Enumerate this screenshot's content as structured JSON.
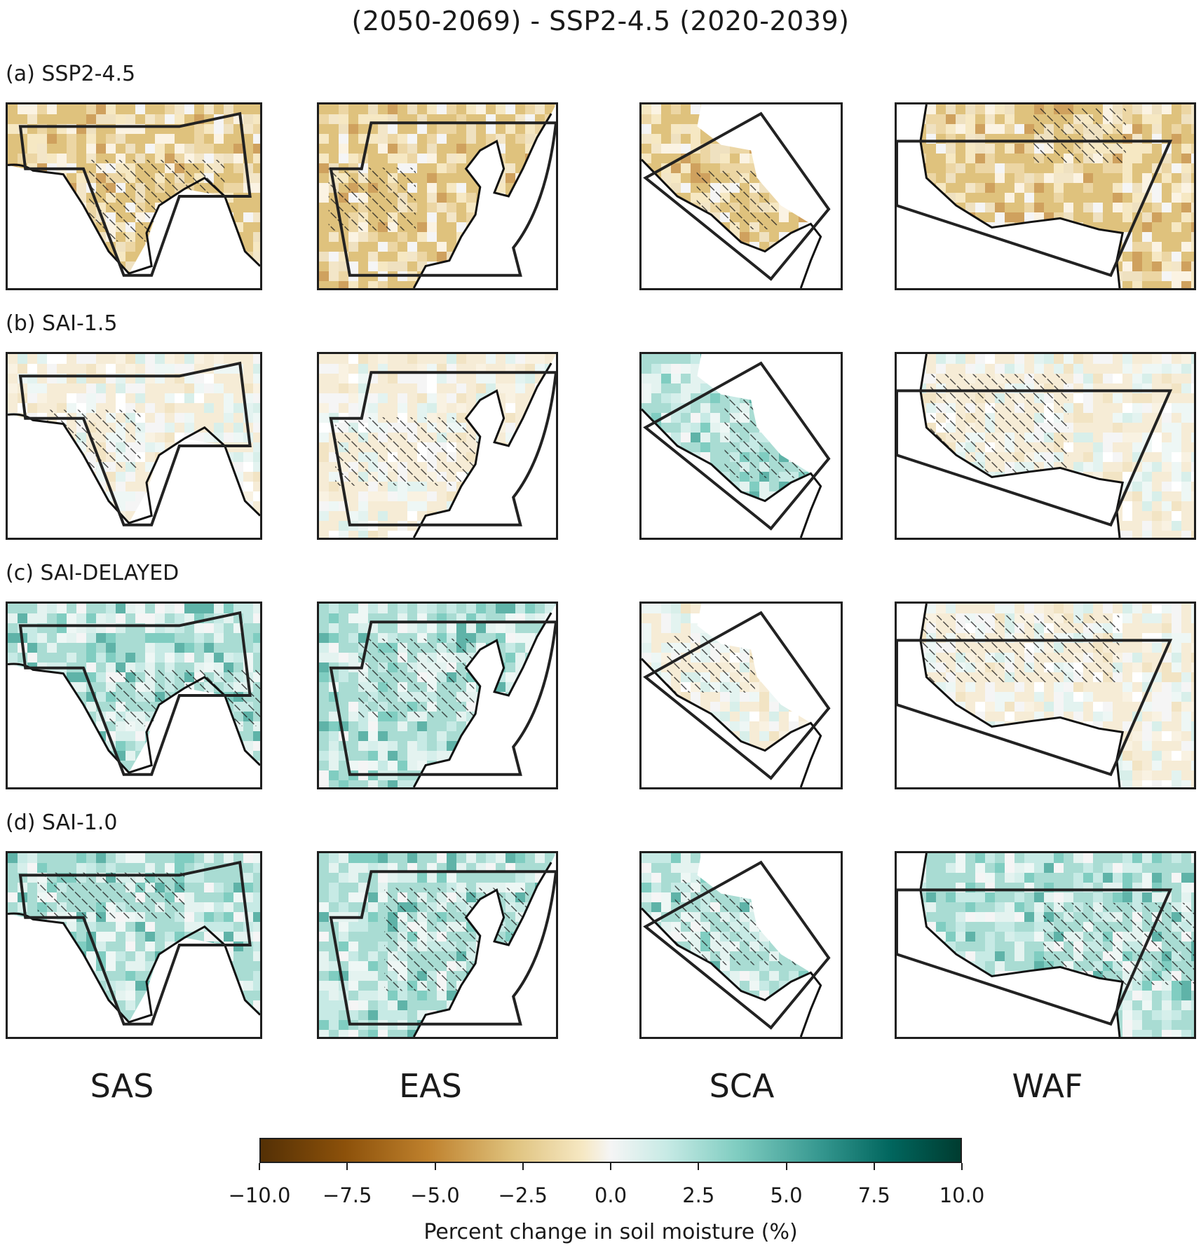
{
  "title": "(2050-2069) - SSP2-4.5 (2020-2039)",
  "rows": [
    {
      "label": "(a) SSP2-4.5",
      "scenario": "SSP2-4.5"
    },
    {
      "label": "(b) SAI-1.5",
      "scenario": "SAI-1.5"
    },
    {
      "label": "(c) SAI-DELAYED",
      "scenario": "SAI-DELAYED"
    },
    {
      "label": "(d) SAI-1.0",
      "scenario": "SAI-1.0"
    }
  ],
  "regions": [
    "SAS",
    "EAS",
    "SCA",
    "WAF"
  ],
  "colorbar": {
    "label": "Percent change in soil moisture (%)",
    "ticks": [
      "−10.0",
      "−7.5",
      "−5.0",
      "−2.5",
      "0.0",
      "2.5",
      "5.0",
      "7.5",
      "10.0"
    ],
    "range": [
      -10,
      10
    ],
    "colormap": "BrBG",
    "colors": {
      "dry": "#543005",
      "neutral": "#f5f5f5",
      "wet": "#003c30"
    }
  },
  "map_data": {
    "panels_tone": [
      [
        "dry",
        "dry",
        "dry",
        "dry"
      ],
      [
        "mixed",
        "mixed",
        "wet",
        "mixed"
      ],
      [
        "wet",
        "wet",
        "mixed",
        "mixed"
      ],
      [
        "wet",
        "wet",
        "wet",
        "wet"
      ]
    ],
    "hatching": "stippled diagonal where significant"
  }
}
